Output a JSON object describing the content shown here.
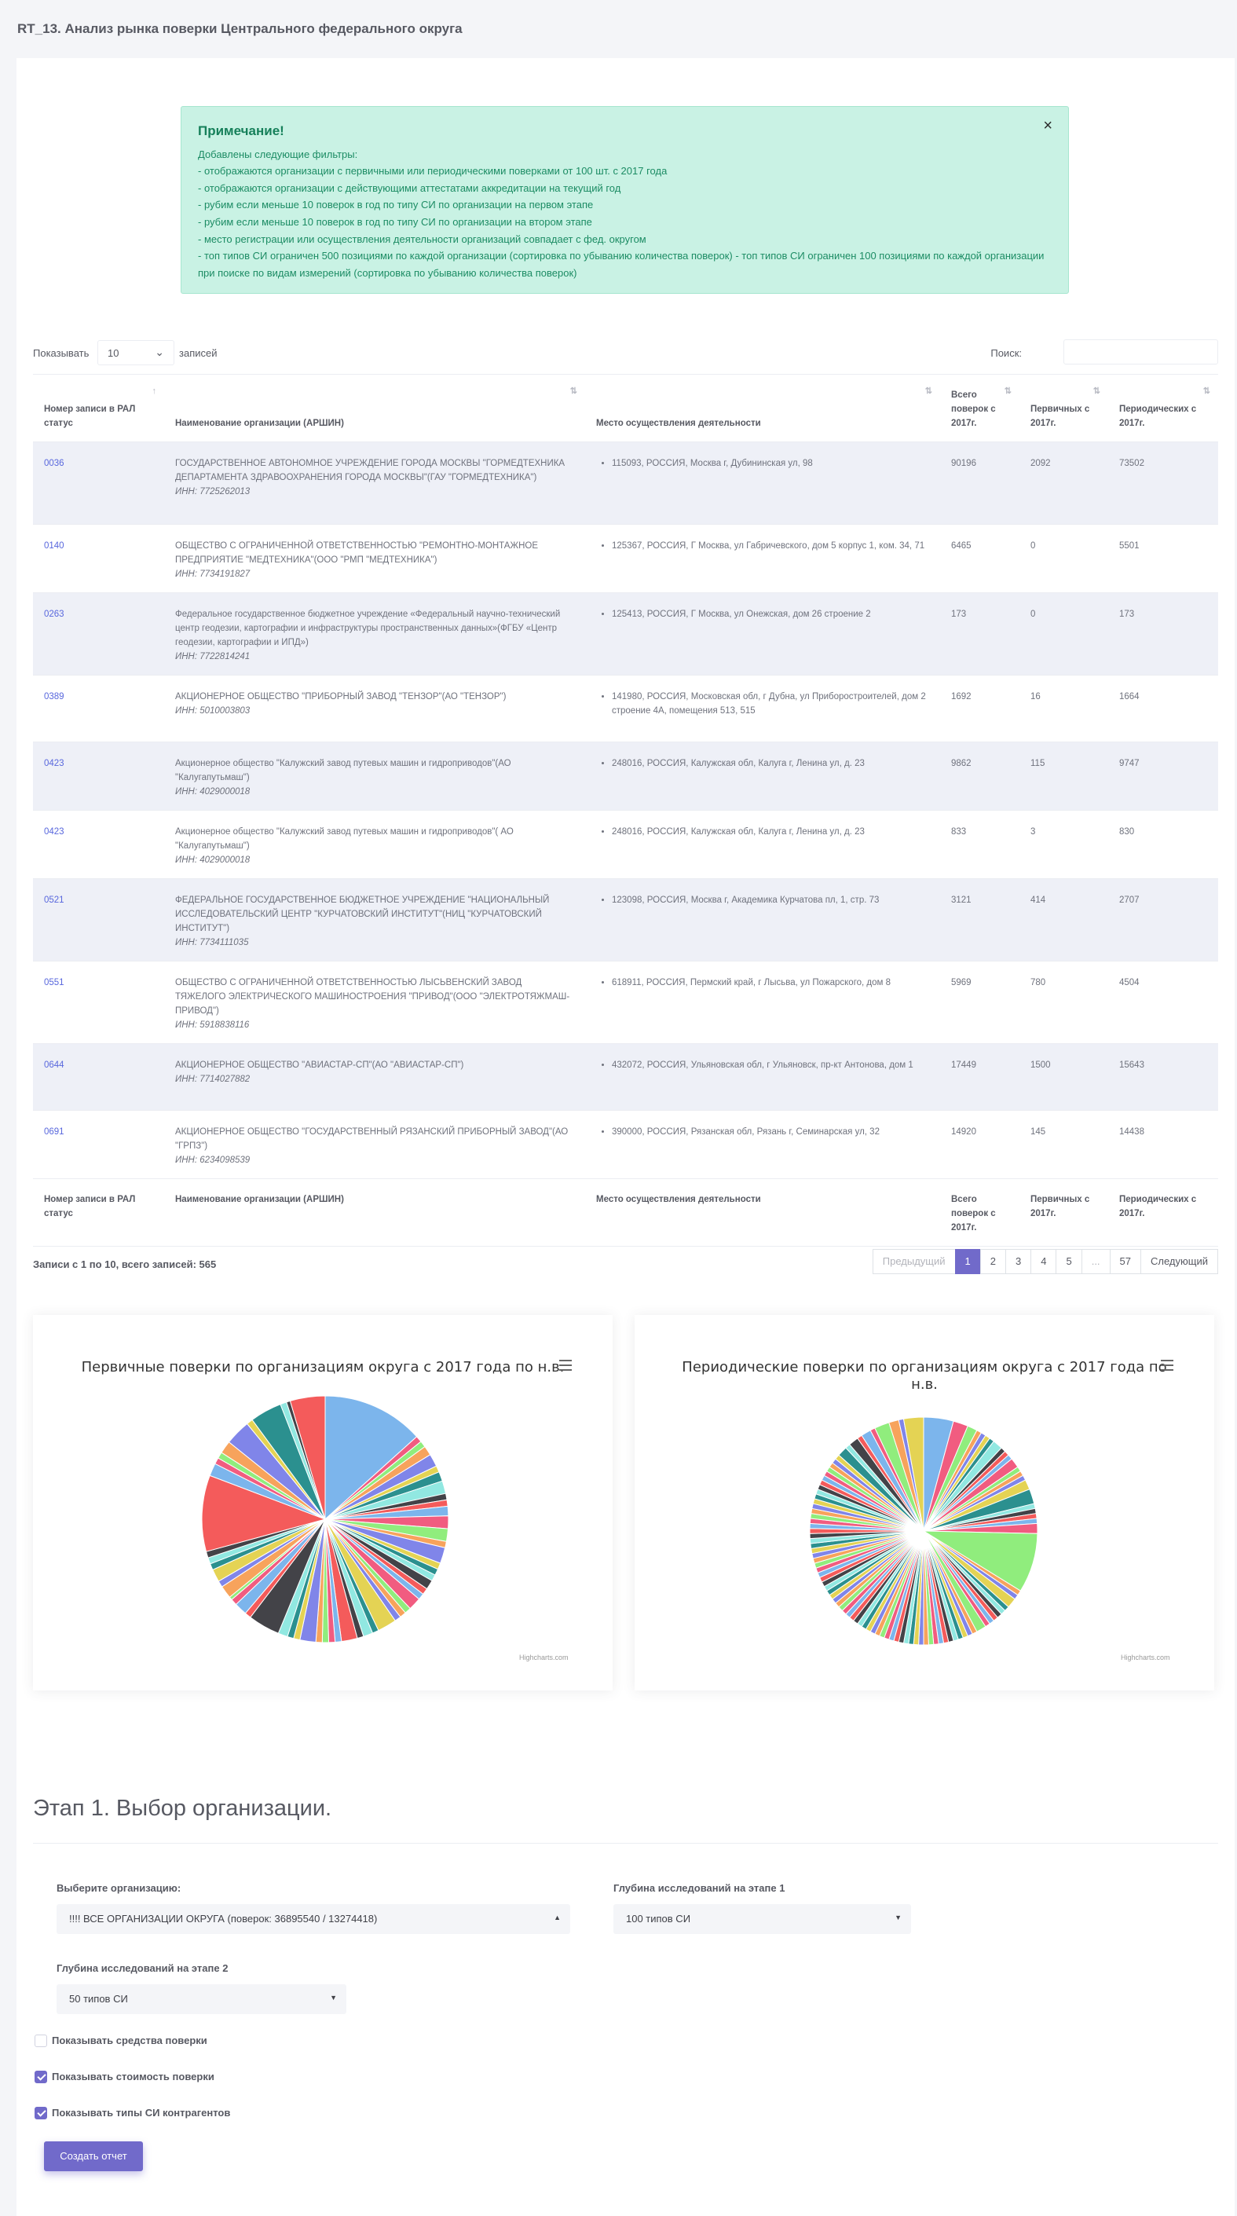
{
  "page": {
    "title": "RT_13. Анализ рынка поверки Центрального федерального округа"
  },
  "alert": {
    "title": "Примечание!",
    "close": "×",
    "lines": [
      "Добавлены следующие фильтры:",
      "- отображаются организации с первичными или периодическими поверками от 100 шт. с 2017 года",
      "- отображаются организации с действующими аттестатами аккредитации на текущий год",
      "- рубим если меньше 10 поверок в год по типу СИ по организации на первом этапе",
      "- рубим если меньше 10 поверок в год по типу СИ по организации на втором этапе",
      "- место регистрации или осуществления деятельности организаций совпадает с фед. округом",
      "- топ типов СИ ограничен 500 позициями по каждой организации (сортировка по убыванию количества поверок) - топ типов СИ ограничен 100 позициями по каждой организации при поиске по видам измерений (сортировка по убыванию количества поверок)"
    ]
  },
  "table_controls": {
    "show_label": "Показывать",
    "length_value": "10",
    "records_label": "записей",
    "search_label": "Поиск:",
    "search_value": ""
  },
  "table": {
    "headers": [
      "Номер записи в РАЛ статус",
      "Наименование организации (АРШИН)",
      "Место осуществления деятельности",
      "Всего поверок с 2017г.",
      "Первичных с 2017г.",
      "Периодических с 2017г."
    ],
    "rows": [
      {
        "id": "0036",
        "name": "ГОСУДАРСТВЕННОЕ АВТОНОМНОЕ УЧРЕЖДЕНИЕ ГОРОДА МОСКВЫ \"ГОРМЕДТЕХНИКА ДЕПАРТАМЕНТА ЗДРАВООХРАНЕНИЯ ГОРОДА МОСКВЫ\"(ГАУ \"ГОРМЕДТЕХНИКА\")",
        "inn": "ИНН: 7725262013",
        "place": "115093, РОССИЯ, Москва г, Дубининская ул, 98",
        "total": "90196",
        "primary": "2092",
        "periodic": "73502"
      },
      {
        "id": "0140",
        "name": "ОБЩЕСТВО С ОГРАНИЧЕННОЙ ОТВЕТСТВЕННОСТЬЮ \"РЕМОНТНО-МОНТАЖНОЕ ПРЕДПРИЯТИЕ \"МЕДТЕХНИКА\"(ООО \"РМП \"МЕДТЕХНИКА\")",
        "inn": "ИНН: 7734191827",
        "place": "125367, РОССИЯ, Г Москва, ул Габричевского, дом 5 корпус 1, ком. 34, 71",
        "total": "6465",
        "primary": "0",
        "periodic": "5501"
      },
      {
        "id": "0263",
        "name": "Федеральное государственное бюджетное учреждение «Федеральный научно-технический центр геодезии, картографии и инфраструктуры пространственных данных»(ФГБУ «Центр геодезии, картографии и ИПД»)",
        "inn": "ИНН: 7722814241",
        "place": "125413, РОССИЯ, Г Москва, ул Онежская, дом 26 строение 2",
        "total": "173",
        "primary": "0",
        "periodic": "173"
      },
      {
        "id": "0389",
        "name": "АКЦИОНЕРНОЕ ОБЩЕСТВО \"ПРИБОРНЫЙ ЗАВОД \"ТЕНЗОР\"(АО \"ТЕНЗОР\")",
        "inn": "ИНН: 5010003803",
        "place": "141980, РОССИЯ, Московская обл, г Дубна, ул Приборостроителей, дом 2 строение 4А, помещения 513, 515",
        "total": "1692",
        "primary": "16",
        "periodic": "1664"
      },
      {
        "id": "0423",
        "name": "Акционерное общество \"Калужский завод путевых машин и гидроприводов\"(АО \"Калугапутьмаш\")",
        "inn": "ИНН: 4029000018",
        "place": "248016, РОССИЯ, Калужская обл, Калуга г, Ленина ул, д. 23",
        "total": "9862",
        "primary": "115",
        "periodic": "9747"
      },
      {
        "id": "0423",
        "name": "Акционерное общество \"Калужский завод путевых машин и гидроприводов\"( АО \"Калугапутьмаш\")",
        "inn": "ИНН: 4029000018",
        "place": "248016, РОССИЯ, Калужская обл, Калуга г, Ленина ул, д. 23",
        "total": "833",
        "primary": "3",
        "periodic": "830"
      },
      {
        "id": "0521",
        "name": "ФЕДЕРАЛЬНОЕ ГОСУДАРСТВЕННОЕ БЮДЖЕТНОЕ УЧРЕЖДЕНИЕ \"НАЦИОНАЛЬНЫЙ ИССЛЕДОВАТЕЛЬСКИЙ ЦЕНТР \"КУРЧАТОВСКИЙ ИНСТИТУТ\"(НИЦ \"КУРЧАТОВСКИЙ ИНСТИТУТ\")",
        "inn": "ИНН: 7734111035",
        "place": "123098, РОССИЯ, Москва г, Академика Курчатова пл, 1, стр. 73",
        "total": "3121",
        "primary": "414",
        "periodic": "2707"
      },
      {
        "id": "0551",
        "name": "ОБЩЕСТВО С ОГРАНИЧЕННОЙ ОТВЕТСТВЕННОСТЬЮ ЛЫСЬВЕНСКИЙ ЗАВОД ТЯЖЕЛОГО ЭЛЕКТРИЧЕСКОГО МАШИНОСТРОЕНИЯ \"ПРИВОД\"(ООО \"ЭЛЕКТРОТЯЖМАШ-ПРИВОД\")",
        "inn": "ИНН: 5918838116",
        "place": "618911, РОССИЯ, Пермский край, г Лысьва, ул Пожарского, дом 8",
        "total": "5969",
        "primary": "780",
        "periodic": "4504"
      },
      {
        "id": "0644",
        "name": "АКЦИОНЕРНОЕ ОБЩЕСТВО \"АВИАСТАР-СП\"(АО \"АВИАСТАР-СП\")",
        "inn": "ИНН: 7714027882",
        "place": "432072, РОССИЯ, Ульяновская обл, г Ульяновск, пр-кт Антонова, дом 1",
        "total": "17449",
        "primary": "1500",
        "periodic": "15643"
      },
      {
        "id": "0691",
        "name": "АКЦИОНЕРНОЕ ОБЩЕСТВО \"ГОСУДАРСТВЕННЫЙ РЯЗАНСКИЙ ПРИБОРНЫЙ ЗАВОД\"(АО \"ГРПЗ\")",
        "inn": "ИНН: 6234098539",
        "place": "390000, РОССИЯ, Рязанская обл, Рязань г, Семинарская ул, 32",
        "total": "14920",
        "primary": "145",
        "periodic": "14438"
      }
    ]
  },
  "table_info": "Записи с 1 по 10, всего записей: 565",
  "pagination": [
    "Предыдущий",
    "1",
    "2",
    "3",
    "4",
    "5",
    "...",
    "57",
    "Следующий"
  ],
  "charts": {
    "left": {
      "title": "Первичные поверки по организациям округа с 2017 года по н.в.",
      "credits": "Highcharts.com"
    },
    "right": {
      "title": "Периодические поверки по организациям округа с 2017 года по н.в.",
      "credits": "Highcharts.com"
    }
  },
  "chart_data": [
    {
      "type": "pie",
      "title": "Первичные поверки по организациям округа с 2017 года по н.в.",
      "values": [
        16,
        1,
        1,
        1.5,
        2,
        1,
        1.5,
        2,
        1,
        1,
        1.5,
        2,
        2,
        1,
        2.5,
        1,
        1,
        1,
        1.5,
        1,
        1,
        2,
        1,
        1,
        1,
        3,
        1,
        1.5,
        1,
        2.5,
        1,
        1,
        1,
        1,
        2.5,
        1,
        1,
        1.5,
        5,
        1,
        2,
        1,
        0.5,
        2,
        1,
        2,
        1,
        1,
        1,
        12,
        2,
        1,
        1,
        2,
        4,
        1,
        5,
        1,
        0.6,
        5.5
      ]
    },
    {
      "type": "pie",
      "title": "Периодические поверки по организациям округа с 2017 года по н.в.",
      "values": [
        6,
        3,
        2,
        1,
        1,
        1,
        1,
        2,
        1,
        1,
        1,
        2,
        1,
        1,
        1,
        2,
        3,
        1,
        1,
        1,
        1,
        2,
        12,
        1,
        1,
        2,
        1,
        1,
        1,
        1,
        1,
        1,
        2,
        1,
        1,
        1,
        1,
        1,
        1,
        1,
        1,
        1,
        1,
        1,
        1,
        1,
        1,
        1,
        1,
        1,
        1,
        1,
        1,
        1,
        1,
        1,
        1,
        1,
        1,
        1,
        1,
        1,
        1,
        1,
        1,
        1,
        1,
        1,
        1,
        1,
        1,
        1,
        1,
        1,
        1,
        1,
        1,
        1,
        1,
        1,
        1,
        1,
        1,
        1,
        1,
        1,
        1,
        1,
        1,
        1,
        1,
        1,
        1,
        1,
        1,
        1,
        2,
        1,
        2,
        1,
        2,
        1,
        3,
        2,
        1,
        4
      ]
    }
  ],
  "pie_colors": [
    "#7cb5ec",
    "#f15c80",
    "#90ed7d",
    "#f7a35c",
    "#8085e9",
    "#e4d354",
    "#2b908f",
    "#91e8e1",
    "#434348",
    "#f45b5b"
  ],
  "section": {
    "title": "Этап 1. Выбор организации."
  },
  "form": {
    "org_label": "Выберите организацию:",
    "org_value": "!!!! ВСЕ ОРГАНИЗАЦИИ ОКРУГА (поверок: 36895540 / 13274418)",
    "depth1_label": "Глубина исследований на этапе 1",
    "depth1_value": "100 типов СИ",
    "depth2_label": "Глубина исследований на этапе 2",
    "depth2_value": "50 типов СИ",
    "checkboxes": [
      {
        "label": "Показывать средства поверки",
        "checked": false
      },
      {
        "label": "Показывать стоимость поверки",
        "checked": true
      },
      {
        "label": "Показывать типы СИ контрагентов",
        "checked": true
      }
    ],
    "submit": "Создать отчет"
  }
}
